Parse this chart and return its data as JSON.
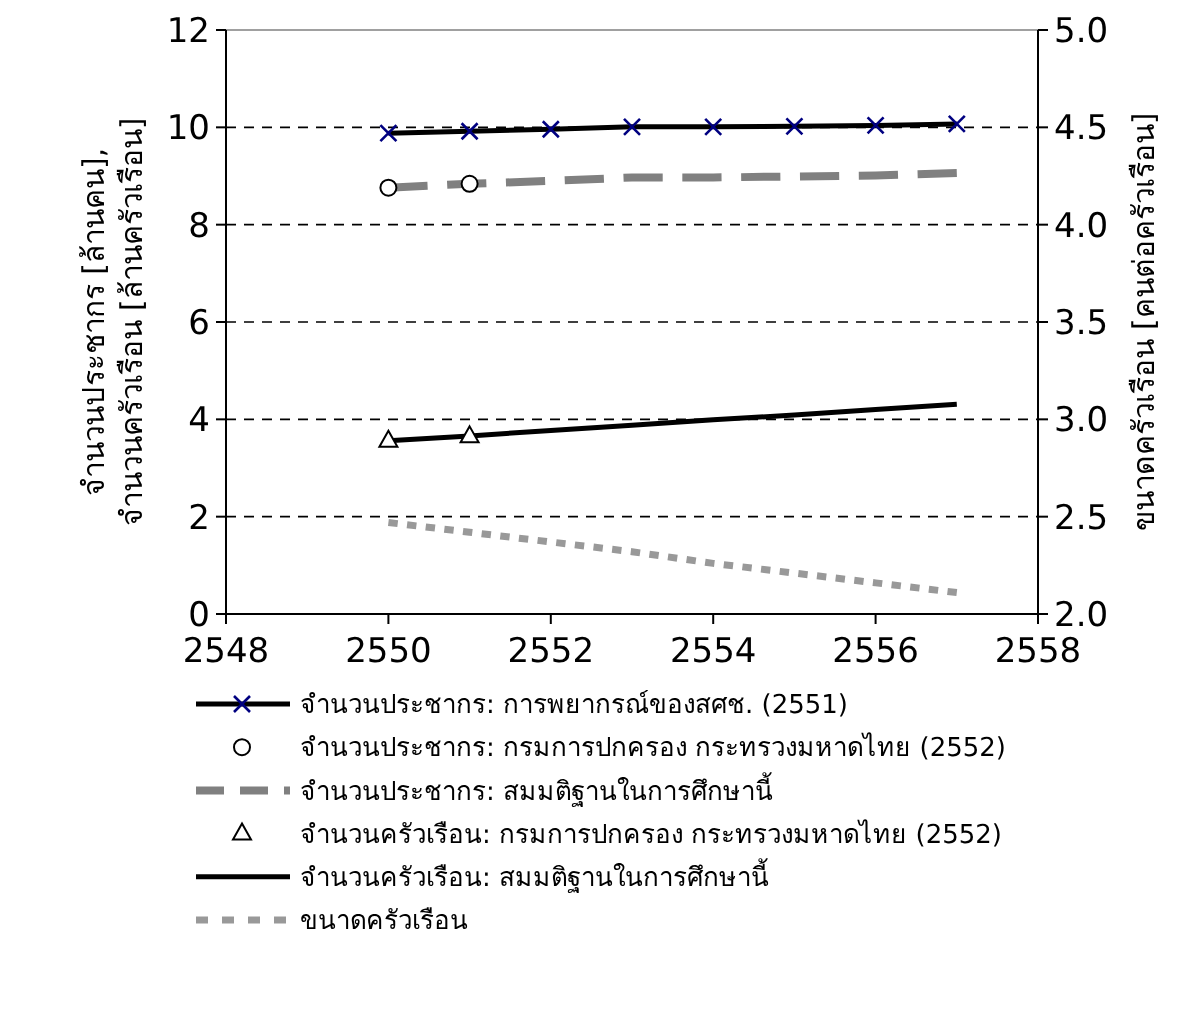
{
  "chart_data": {
    "type": "line",
    "xlabel": null,
    "ylabel": "จำนวนประชากร [ล้านคน],\nจำนวนครัวเรือน [ล้านครัวเรือน]",
    "y2label": "ขนาดครัวเรือน [คนต่อครัวเรือน]",
    "xlim": [
      2548,
      2558
    ],
    "xticks": [
      2548,
      2550,
      2552,
      2554,
      2556,
      2558
    ],
    "ylim": [
      0,
      12
    ],
    "yticks": [
      0,
      2,
      4,
      6,
      8,
      10,
      12
    ],
    "y2lim": [
      2,
      5
    ],
    "y2ticks": [
      {
        "value": 2,
        "label": "2.0"
      },
      {
        "value": 2.5,
        "label": "2.5"
      },
      {
        "value": 3,
        "label": "3.0"
      },
      {
        "value": 3.5,
        "label": "3.5"
      },
      {
        "value": 4,
        "label": "4.0"
      },
      {
        "value": 4.5,
        "label": "4.5"
      },
      {
        "value": 5,
        "label": "5.0"
      }
    ],
    "grid": "y",
    "legend": "bottom",
    "series": [
      {
        "name": "จำนวนประชากร: การพยากรณ์ของสศช. (2551)",
        "color": "#000000",
        "marker": "cross",
        "line_style": "solid",
        "x": [
          2550,
          2551,
          2552,
          2553,
          2554,
          2555,
          2556,
          2557
        ],
        "values": [
          9.88,
          9.92,
          9.96,
          10.01,
          10.01,
          10.02,
          10.04,
          10.07
        ]
      },
      {
        "name": "จำนวนประชากร: กรมการปกครอง กระทรวงมหาดไทย (2552)",
        "type": "scatter",
        "color": "#000000",
        "marker": "circle",
        "x": [
          2550,
          2551
        ],
        "values": [
          8.76,
          8.84
        ]
      },
      {
        "name": "จำนวนประชากร: สมมติฐานในการศึกษานี้",
        "color": "#808080",
        "marker": "none",
        "line_style": "dashed",
        "x": [
          2550,
          2551,
          2552,
          2553,
          2554,
          2555,
          2556,
          2557
        ],
        "values": [
          8.76,
          8.84,
          8.9,
          8.97,
          8.97,
          8.99,
          9.01,
          9.06
        ]
      },
      {
        "name": "จำนวนครัวเรือน: กรมการปกครอง กระทรวงมหาดไทย (2552)",
        "type": "scatter",
        "color": "#000000",
        "marker": "triangle",
        "x": [
          2550,
          2551
        ],
        "values": [
          3.56,
          3.65
        ]
      },
      {
        "name": "จำนวนครัวเรือน: สมมติฐานในการศึกษานี้",
        "color": "#000000",
        "marker": "none",
        "line_style": "solid",
        "x": [
          2550,
          2551,
          2552,
          2553,
          2554,
          2555,
          2556,
          2557
        ],
        "values": [
          3.56,
          3.66,
          3.77,
          3.88,
          3.99,
          4.09,
          4.2,
          4.31
        ]
      },
      {
        "name": "ขนาดครัวเรือน",
        "axis": "y2",
        "color": "#999999",
        "marker": "none",
        "line_style": "dotted",
        "x": [
          2550,
          2551,
          2552,
          2553,
          2554,
          2555,
          2556,
          2557
        ],
        "values": [
          2.47,
          2.42,
          2.37,
          2.32,
          2.26,
          2.21,
          2.16,
          2.11
        ]
      }
    ]
  }
}
